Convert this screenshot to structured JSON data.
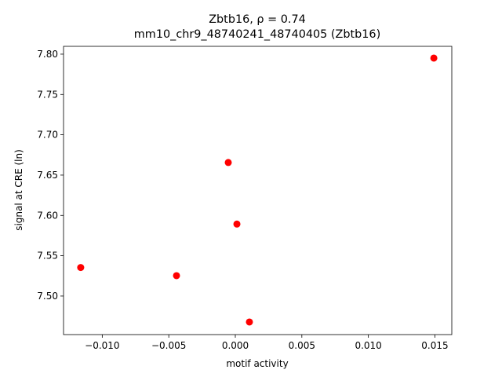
{
  "chart_data": {
    "type": "scatter",
    "title": "Zbtb16, ρ = 0.74",
    "subtitle": "mm10_chr9_48740241_48740405 (Zbtb16)",
    "x_label": "motif activity",
    "y_label": "signal at CRE (ln)",
    "color": "#ff0000",
    "x": [
      0.01492,
      -0.00053,
      0.00012,
      -0.01162,
      -0.00442,
      0.00106
    ],
    "values": [
      7.7951,
      7.6656,
      7.5893,
      7.5354,
      7.5253,
      7.4678
    ],
    "xlim": [
      -0.01291,
      0.01627
    ],
    "ylim": [
      7.4522,
      7.8097
    ],
    "xticks": [
      {
        "value": -0.01,
        "label": "−0.010"
      },
      {
        "value": -0.005,
        "label": "−0.005"
      },
      {
        "value": 0,
        "label": "0.000"
      },
      0.005,
      {
        "value": 0.01,
        "label": "0.010"
      },
      0.015
    ],
    "yticks": [
      {
        "value": 7.5,
        "label": "7.50"
      },
      7.55,
      {
        "value": 7.6,
        "label": "7.60"
      },
      7.65,
      {
        "value": 7.7,
        "label": "7.70"
      },
      7.75,
      {
        "value": 7.8,
        "label": "7.80"
      }
    ],
    "grid": false
  }
}
